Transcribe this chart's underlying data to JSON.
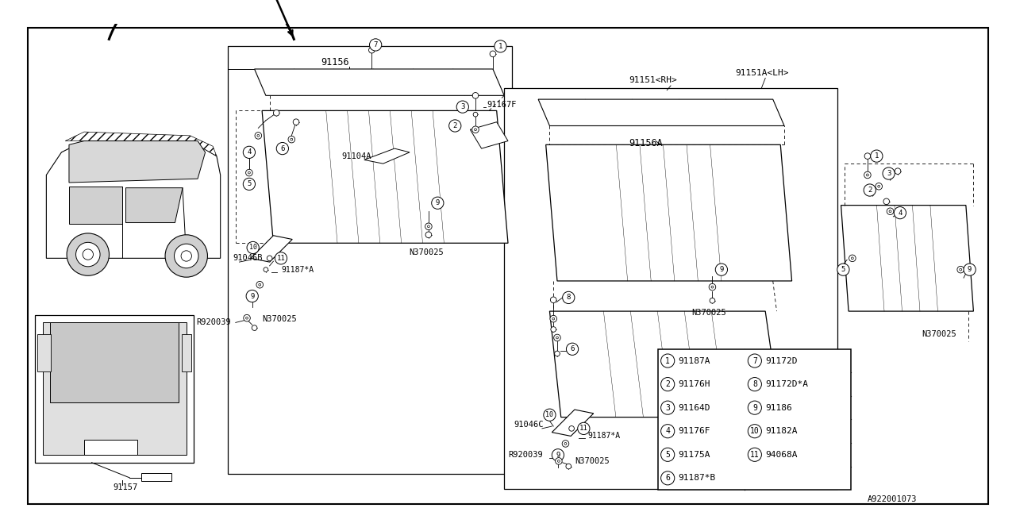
{
  "bg_color": "#ffffff",
  "line_color": "#000000",
  "diagram_id": "A922001073",
  "parts_table": [
    {
      "num": 1,
      "code": "91187A",
      "num2": 7,
      "code2": "91172D"
    },
    {
      "num": 2,
      "code": "91176H",
      "num2": 8,
      "code2": "91172D*A"
    },
    {
      "num": 3,
      "code": "91164D",
      "num2": 9,
      "code2": "91186"
    },
    {
      "num": 4,
      "code": "91176F",
      "num2": 10,
      "code2": "91182A"
    },
    {
      "num": 5,
      "code": "91175A",
      "num2": 11,
      "code2": "94068A"
    },
    {
      "num": 6,
      "code": "91187*B",
      "num2": null,
      "code2": ""
    }
  ],
  "label_91151RH": "91151<RH>",
  "label_91151ALH": "91151A<LH>",
  "label_91156": "91156",
  "label_91156A": "91156A",
  "label_91104A": "91104A",
  "label_91167F": "91167F",
  "label_91046B": "91046B",
  "label_91046C": "91046C",
  "label_91187A": "91187*A",
  "label_91157": "91157",
  "label_R920039": "R920039",
  "label_N370025": "N370025",
  "label_A922001073": "A922001073"
}
